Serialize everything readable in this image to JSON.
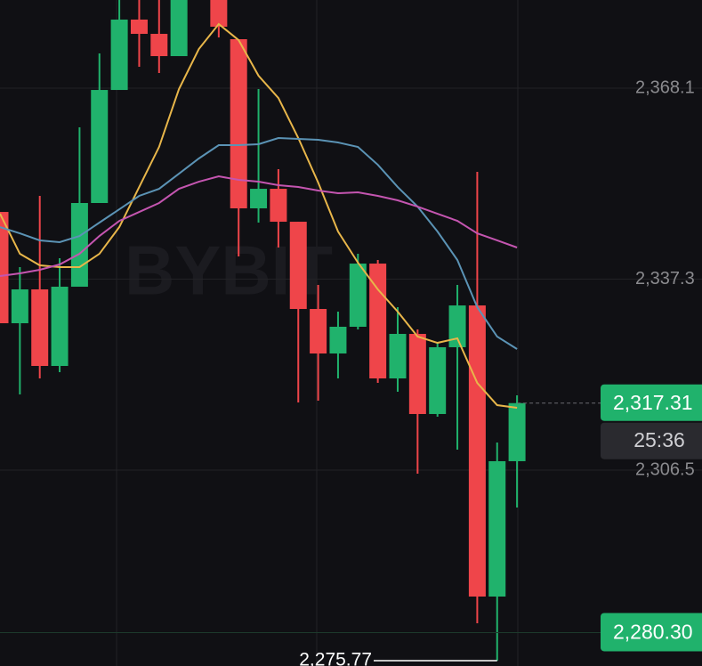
{
  "chart_data": {
    "type": "candlestick",
    "watermark": "BYBIT",
    "open": [
      2348.14,
      2330.19,
      2335.65,
      2323.3,
      2336.08,
      2349.58,
      2367.81,
      2379.16,
      2376.86,
      2373.27,
      null,
      2382.32,
      2376.0,
      2348.72,
      2351.87,
      2346.56,
      2332.49,
      2325.31,
      2329.62,
      2339.81,
      2321.29,
      2328.47,
      2315.55,
      2326.32,
      2333.06,
      2286.11,
      2307.94
    ],
    "high": [
      2348.14,
      2339.24,
      2350.73,
      2340.67,
      2361.78,
      2373.7,
      2382.32,
      2382.32,
      2382.32,
      2382.32,
      null,
      2382.32,
      2376.0,
      2367.96,
      2355.03,
      2346.56,
      2336.37,
      2332.06,
      2341.39,
      2340.39,
      2332.78,
      2329.19,
      2327.03,
      2336.37,
      2354.6,
      2310.95,
      2318.56
    ],
    "low": [
      2330.19,
      2318.7,
      2321.29,
      2322.29,
      2336.08,
      2349.58,
      2367.81,
      2371.55,
      2370.54,
      2373.27,
      null,
      2376.28,
      2340.96,
      2346.42,
      2342.4,
      2317.41,
      2317.7,
      2321.29,
      2329.19,
      2320.57,
      2319.14,
      2305.93,
      2315.12,
      2309.8,
      2281.8,
      2275.77,
      2300.47
    ],
    "close": [
      2330.19,
      2335.65,
      2323.3,
      2336.08,
      2349.58,
      2367.81,
      2379.16,
      2376.86,
      2373.27,
      2382.32,
      null,
      2378.01,
      2348.72,
      2351.87,
      2346.56,
      2332.49,
      2325.31,
      2329.62,
      2339.81,
      2321.29,
      2328.47,
      2315.55,
      2326.32,
      2333.06,
      2286.11,
      2307.94,
      2317.31
    ],
    "up_color": "#20b26c",
    "down_color": "#ef454a",
    "moving_averages": [
      {
        "color": "#e8b64a",
        "values": [
          2347.85,
          2341.39,
          2339.53,
          2339.24,
          2339.24,
          2341.39,
          2345.7,
          2352.16,
          2358.62,
          2367.96,
          2374.42,
          2378.44,
          2375.85,
          2370.11,
          2366.52,
          2360.06,
          2352.88,
          2344.98,
          2339.96,
          2335.65,
          2332.06,
          2328.04,
          2327.03,
          2327.75,
          2320.57,
          2316.98,
          2316.55
        ]
      },
      {
        "color": "#5b93b5",
        "values": [
          2345.7,
          2344.69,
          2343.55,
          2343.26,
          2344.26,
          2346.42,
          2348.57,
          2350.73,
          2351.87,
          2354.31,
          2356.76,
          2358.91,
          2358.91,
          2359.06,
          2360.06,
          2359.92,
          2359.77,
          2359.34,
          2358.62,
          2355.75,
          2352.16,
          2349.0,
          2344.98,
          2340.39,
          2332.78,
          2328.04,
          2326.03
        ]
      },
      {
        "color": "#c455b0",
        "values": [
          2337.8,
          2338.23,
          2338.81,
          2339.67,
          2341.39,
          2344.26,
          2346.7,
          2348.14,
          2349.58,
          2351.87,
          2353.02,
          2353.88,
          2353.31,
          2353.02,
          2352.45,
          2352.16,
          2351.59,
          2351.16,
          2351.3,
          2350.73,
          2350.01,
          2349.0,
          2347.85,
          2346.7,
          2344.69,
          2343.55,
          2342.4
        ]
      }
    ],
    "ylim": [
      2274.91,
      2382.32
    ],
    "yticks": [
      {
        "value": 2368.1,
        "label": "2,368.1"
      },
      {
        "value": 2337.3,
        "label": "2,337.3"
      },
      {
        "value": 2306.5,
        "label": "2,306.5"
      }
    ],
    "grid": true,
    "last_price": {
      "value": 2317.31,
      "label": "2,317.31"
    },
    "countdown": "25:36",
    "price_line": {
      "value": 2280.3,
      "label": "2,280.30"
    },
    "low_marker": {
      "value": 2275.77,
      "label": "2,275.77"
    }
  }
}
